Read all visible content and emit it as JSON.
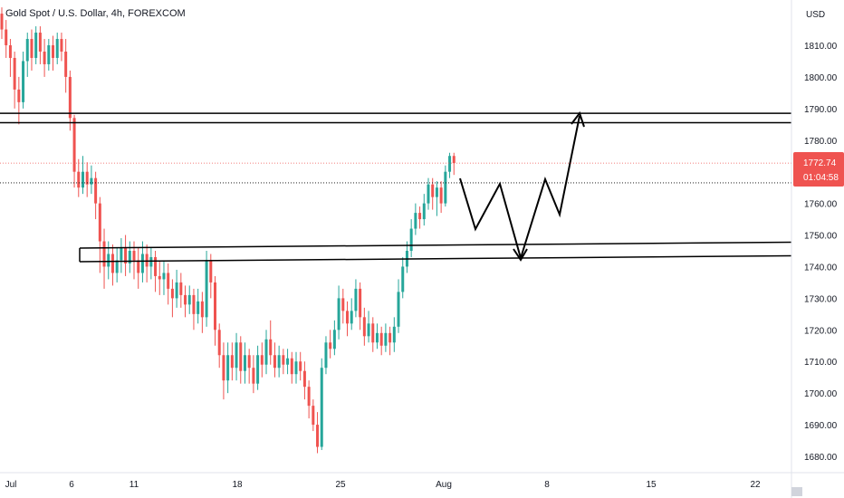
{
  "chart_data": {
    "type": "candlestick",
    "title": "Gold Spot / U.S. Dollar, 4h, FOREXCOM",
    "currency": "USD",
    "ylim": [
      1676,
      1830
    ],
    "y_ticks": [
      1680,
      1690,
      1700,
      1710,
      1720,
      1730,
      1740,
      1750,
      1760,
      1770,
      1780,
      1790,
      1800,
      1810
    ],
    "y_tick_labels": [
      "1680.00",
      "1690.00",
      "1700.00",
      "1710.00",
      "1720.00",
      "1730.00",
      "1740.00",
      "1750.00",
      "1760.00",
      "1770.00",
      "1780.00",
      "1790.00",
      "1800.00",
      "1810.00"
    ],
    "x_tick_labels": [
      "Jul",
      "6",
      "11",
      "18",
      "25",
      "Aug",
      "8",
      "15",
      "22"
    ],
    "last_price": "1772.74",
    "countdown": "01:04:58",
    "colors": {
      "up": "#26a69a",
      "down": "#ef5350",
      "tag": "#ef5350",
      "drawing": "#000000",
      "price_line": "#ef5350"
    },
    "candles": [
      [
        1820,
        1815,
        1822,
        1812
      ],
      [
        1815,
        1810,
        1818,
        1806
      ],
      [
        1810,
        1806,
        1812,
        1800
      ],
      [
        1806,
        1796,
        1808,
        1790
      ],
      [
        1796,
        1792,
        1800,
        1785
      ],
      [
        1792,
        1805,
        1808,
        1790
      ],
      [
        1805,
        1812,
        1814,
        1800
      ],
      [
        1812,
        1806,
        1815,
        1802
      ],
      [
        1806,
        1814,
        1816,
        1804
      ],
      [
        1814,
        1808,
        1816,
        1804
      ],
      [
        1808,
        1804,
        1812,
        1800
      ],
      [
        1804,
        1810,
        1812,
        1802
      ],
      [
        1810,
        1806,
        1813,
        1802
      ],
      [
        1806,
        1812,
        1814,
        1804
      ],
      [
        1812,
        1808,
        1814,
        1805
      ],
      [
        1808,
        1800,
        1812,
        1795
      ],
      [
        1800,
        1787,
        1802,
        1783
      ],
      [
        1787,
        1770,
        1788,
        1765
      ],
      [
        1770,
        1765,
        1774,
        1762
      ],
      [
        1765,
        1770,
        1775,
        1763
      ],
      [
        1770,
        1766,
        1773,
        1762
      ],
      [
        1766,
        1768,
        1772,
        1763
      ],
      [
        1768,
        1760,
        1770,
        1755
      ],
      [
        1760,
        1748,
        1762,
        1738
      ],
      [
        1748,
        1740,
        1752,
        1733
      ],
      [
        1740,
        1744,
        1748,
        1736
      ],
      [
        1744,
        1738,
        1747,
        1734
      ],
      [
        1738,
        1742,
        1746,
        1735
      ],
      [
        1742,
        1746,
        1749,
        1738
      ],
      [
        1746,
        1741,
        1750,
        1737
      ],
      [
        1741,
        1745,
        1748,
        1738
      ],
      [
        1745,
        1742,
        1748,
        1736
      ],
      [
        1742,
        1738,
        1746,
        1733
      ],
      [
        1738,
        1744,
        1748,
        1735
      ],
      [
        1744,
        1740,
        1747,
        1735
      ],
      [
        1740,
        1743,
        1746,
        1736
      ],
      [
        1743,
        1737,
        1745,
        1732
      ],
      [
        1737,
        1736,
        1742,
        1731
      ],
      [
        1736,
        1738,
        1742,
        1731
      ],
      [
        1738,
        1733,
        1741,
        1728
      ],
      [
        1733,
        1730,
        1736,
        1724
      ],
      [
        1730,
        1735,
        1739,
        1727
      ],
      [
        1735,
        1731,
        1738,
        1727
      ],
      [
        1731,
        1728,
        1734,
        1724
      ],
      [
        1728,
        1731,
        1734,
        1725
      ],
      [
        1731,
        1725,
        1733,
        1720
      ],
      [
        1725,
        1729,
        1733,
        1722
      ],
      [
        1729,
        1724,
        1732,
        1719
      ],
      [
        1724,
        1742,
        1745,
        1721
      ],
      [
        1742,
        1735,
        1744,
        1730
      ],
      [
        1735,
        1720,
        1737,
        1715
      ],
      [
        1720,
        1712,
        1722,
        1708
      ],
      [
        1712,
        1704,
        1716,
        1698
      ],
      [
        1704,
        1712,
        1716,
        1700
      ],
      [
        1712,
        1708,
        1716,
        1704
      ],
      [
        1708,
        1716,
        1719,
        1704
      ],
      [
        1716,
        1707,
        1718,
        1703
      ],
      [
        1707,
        1712,
        1716,
        1703
      ],
      [
        1712,
        1708,
        1714,
        1703
      ],
      [
        1708,
        1703,
        1712,
        1700
      ],
      [
        1703,
        1712,
        1715,
        1701
      ],
      [
        1712,
        1709,
        1716,
        1705
      ],
      [
        1709,
        1717,
        1720,
        1706
      ],
      [
        1717,
        1712,
        1723,
        1709
      ],
      [
        1712,
        1708,
        1716,
        1705
      ],
      [
        1708,
        1712,
        1715,
        1705
      ],
      [
        1712,
        1709,
        1714,
        1706
      ],
      [
        1709,
        1711,
        1714,
        1706
      ],
      [
        1711,
        1706,
        1713,
        1703
      ],
      [
        1706,
        1710,
        1713,
        1703
      ],
      [
        1710,
        1707,
        1713,
        1704
      ],
      [
        1707,
        1702,
        1710,
        1698
      ],
      [
        1702,
        1696,
        1704,
        1692
      ],
      [
        1696,
        1690,
        1698,
        1688
      ],
      [
        1690,
        1683,
        1694,
        1681
      ],
      [
        1683,
        1708,
        1711,
        1682
      ],
      [
        1708,
        1716,
        1718,
        1706
      ],
      [
        1716,
        1714,
        1720,
        1711
      ],
      [
        1714,
        1720,
        1723,
        1712
      ],
      [
        1720,
        1730,
        1734,
        1717
      ],
      [
        1730,
        1726,
        1733,
        1722
      ],
      [
        1726,
        1722,
        1729,
        1718
      ],
      [
        1722,
        1726,
        1730,
        1720
      ],
      [
        1726,
        1733,
        1736,
        1724
      ],
      [
        1733,
        1724,
        1735,
        1720
      ],
      [
        1724,
        1718,
        1727,
        1715
      ],
      [
        1718,
        1722,
        1726,
        1716
      ],
      [
        1722,
        1716,
        1724,
        1713
      ],
      [
        1716,
        1719,
        1722,
        1714
      ],
      [
        1719,
        1715,
        1721,
        1712
      ],
      [
        1715,
        1719,
        1722,
        1713
      ],
      [
        1719,
        1716,
        1721,
        1712
      ],
      [
        1716,
        1721,
        1724,
        1713
      ],
      [
        1721,
        1732,
        1736,
        1719
      ],
      [
        1732,
        1740,
        1743,
        1730
      ],
      [
        1740,
        1745,
        1748,
        1738
      ],
      [
        1745,
        1752,
        1755,
        1743
      ],
      [
        1752,
        1757,
        1760,
        1750
      ],
      [
        1757,
        1755,
        1759,
        1752
      ],
      [
        1755,
        1760,
        1763,
        1753
      ],
      [
        1760,
        1766,
        1768,
        1758
      ],
      [
        1766,
        1762,
        1768,
        1758
      ],
      [
        1762,
        1765,
        1767,
        1756
      ],
      [
        1765,
        1760,
        1767,
        1757
      ],
      [
        1760,
        1770,
        1772,
        1759
      ],
      [
        1770,
        1775,
        1776,
        1768
      ],
      [
        1775,
        1772.74,
        1776,
        1769
      ]
    ],
    "horizontal_lines": [
      {
        "y": 1788.5,
        "label": "resistance-top"
      },
      {
        "y": 1785.5,
        "label": "resistance-bottom"
      }
    ],
    "reference_lines": [
      {
        "y": 1766.5,
        "style": "dotted",
        "color": "#000000"
      },
      {
        "y": 1772.74,
        "style": "dotted",
        "color": "#ef5350"
      }
    ]
  }
}
